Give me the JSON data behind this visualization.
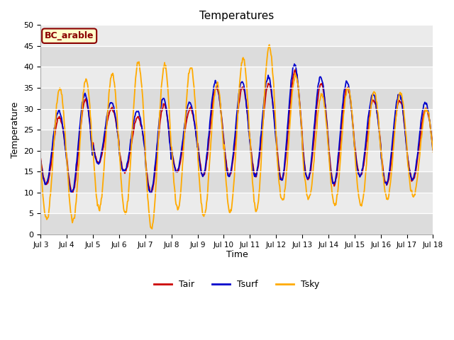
{
  "title": "Temperatures",
  "xlabel": "Time",
  "ylabel": "Temperature",
  "annotation": "BC_arable",
  "ylim": [
    0,
    50
  ],
  "xlim_days": [
    3,
    18
  ],
  "x_ticks": [
    3,
    4,
    5,
    6,
    7,
    8,
    9,
    10,
    11,
    12,
    13,
    14,
    15,
    16,
    17,
    18
  ],
  "x_tick_labels": [
    "Jul 3",
    "Jul 4",
    "Jul 5",
    "Jul 6",
    "Jul 7",
    "Jul 8",
    "Jul 9",
    "Jul 10",
    "Jul 11",
    "Jul 12",
    "Jul 13",
    "Jul 14",
    "Jul 15",
    "Jul 16",
    "Jul 17",
    "Jul 18"
  ],
  "y_ticks": [
    0,
    5,
    10,
    15,
    20,
    25,
    30,
    35,
    40,
    45,
    50
  ],
  "colors": {
    "Tair": "#cc0000",
    "Tsurf": "#0000cc",
    "Tsky": "#ffaa00",
    "annotation_bg": "#ffffcc",
    "annotation_border": "#8b0000",
    "band_dark": "#dcdcdc",
    "band_light": "#ebebeb"
  },
  "legend_labels": [
    "Tair",
    "Tsurf",
    "Tsky"
  ],
  "plot_bg": "#e8e8e8"
}
